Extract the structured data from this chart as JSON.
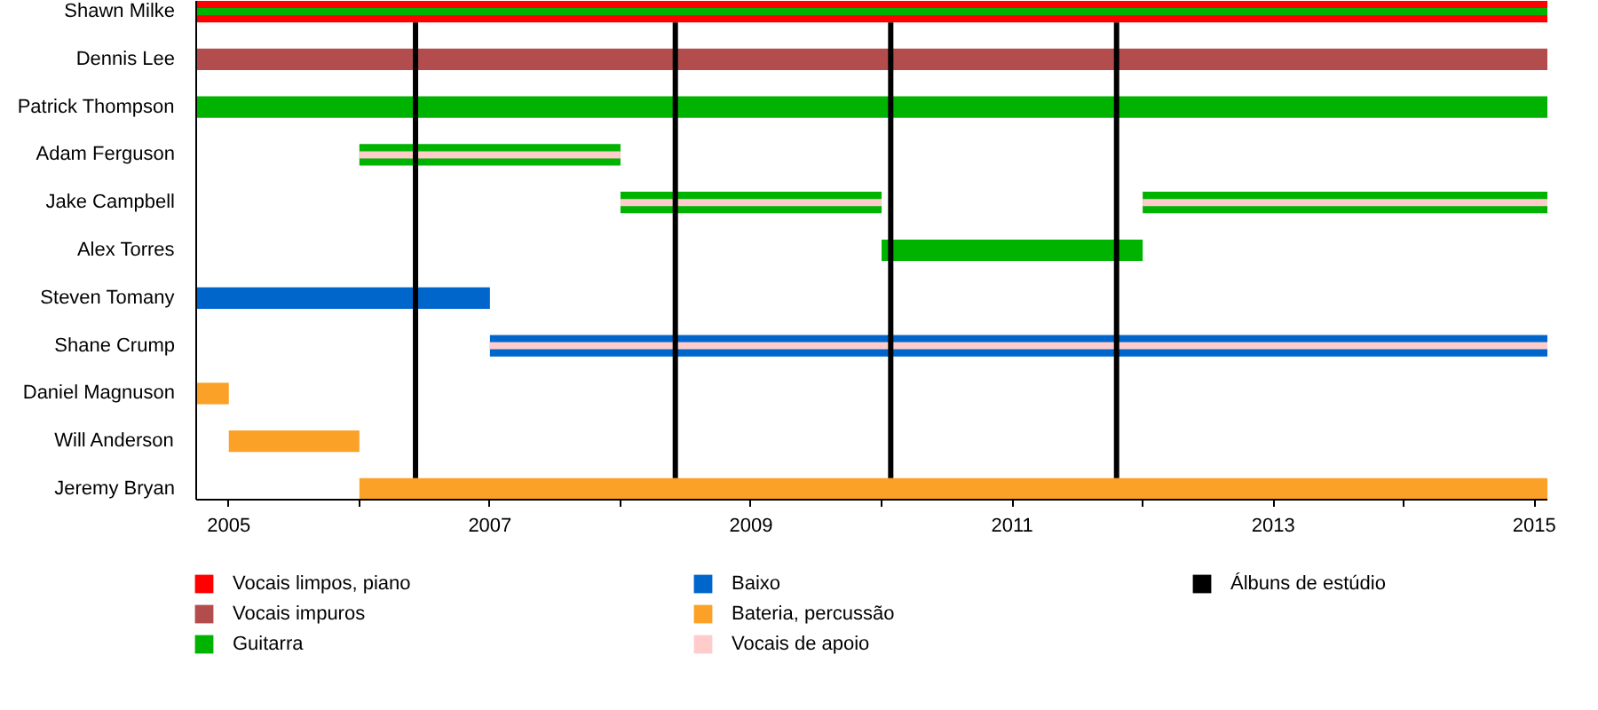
{
  "chart_data": {
    "type": "bar",
    "orientation": "horizontal",
    "categories": [
      "Shawn Milke",
      "Dennis Lee",
      "Patrick Thompson",
      "Adam Ferguson",
      "Jake Campbell",
      "Alex Torres",
      "Steven Tomany",
      "Shane Crump",
      "Daniel Magnuson",
      "Will Anderson",
      "Jeremy Bryan"
    ],
    "series": [
      {
        "name": "Vocais limpos, piano",
        "color": "#ff0000",
        "values": [
          10.35,
          null,
          null,
          null,
          null,
          null,
          null,
          null,
          null,
          null,
          null
        ],
        "base": [
          2004.75,
          null,
          null,
          null,
          null,
          null,
          null,
          null,
          null,
          null,
          null
        ]
      },
      {
        "name": "Vocais impuros",
        "color": "#b34d4d",
        "values": [
          null,
          10.35,
          null,
          null,
          null,
          null,
          null,
          null,
          null,
          null,
          null
        ],
        "base": [
          null,
          2004.75,
          null,
          null,
          null,
          null,
          null,
          null,
          null,
          null,
          null
        ]
      },
      {
        "name": "Guitarra",
        "color": "#00b300",
        "values": [
          10.35,
          null,
          10.35,
          2,
          2,
          2,
          null,
          null,
          null,
          null,
          null
        ],
        "base": [
          2004.75,
          null,
          2004.75,
          2006,
          2008,
          2010,
          null,
          null,
          null,
          null,
          null
        ]
      },
      {
        "color": "#00b300",
        "values": [
          null,
          null,
          null,
          null,
          3.1,
          null,
          null,
          null,
          null,
          null,
          null
        ],
        "base": [
          null,
          null,
          null,
          null,
          2012,
          null,
          null,
          null,
          null,
          null,
          null
        ]
      },
      {
        "name": "Baixo",
        "color": "#0066cc",
        "values": [
          null,
          null,
          null,
          null,
          null,
          null,
          2.25,
          8.1,
          null,
          null,
          null
        ],
        "base": [
          null,
          null,
          null,
          null,
          null,
          null,
          2004.75,
          2007,
          null,
          null,
          null
        ]
      },
      {
        "name": "Bateria, percussão",
        "color": "#fca127",
        "values": [
          null,
          null,
          null,
          null,
          null,
          null,
          null,
          null,
          0.25,
          1,
          9.1
        ],
        "base": [
          null,
          null,
          null,
          null,
          null,
          null,
          null,
          null,
          2004.75,
          2005,
          2006
        ]
      },
      {
        "name": "Vocais de apoio",
        "color": "#ffcccc",
        "values": [
          null,
          null,
          null,
          2,
          2,
          null,
          null,
          8.1,
          null,
          null,
          null
        ],
        "base": [
          null,
          null,
          null,
          2006,
          2008,
          null,
          null,
          2007,
          null,
          null,
          null
        ]
      },
      {
        "color": "#ffcccc",
        "values": [
          null,
          null,
          null,
          null,
          3.1,
          null,
          null,
          null,
          null,
          null,
          null
        ],
        "base": [
          null,
          null,
          null,
          null,
          2012,
          null,
          null,
          null,
          null,
          null,
          null
        ]
      }
    ],
    "xlim": [
      2004.75,
      2015.1
    ],
    "xticks": [
      2005,
      {
        "value": 2006,
        "label": null
      },
      2007,
      {
        "value": 2008,
        "label": null
      },
      2009,
      {
        "value": 2010,
        "label": null
      },
      2011,
      {
        "value": 2012,
        "label": null
      },
      2013,
      {
        "value": 2014,
        "label": null
      },
      2015
    ],
    "ref_lines": [
      {
        "axis": "x",
        "value": 2006.43,
        "label": "Álbuns de estúdio",
        "color": "#000000"
      },
      {
        "axis": "x",
        "value": 2008.42,
        "color": "#000000"
      },
      {
        "axis": "x",
        "value": 2010.07,
        "color": "#000000"
      },
      {
        "axis": "x",
        "value": 2011.8,
        "color": "#000000"
      }
    ],
    "grid": false,
    "legend": "bottom"
  }
}
